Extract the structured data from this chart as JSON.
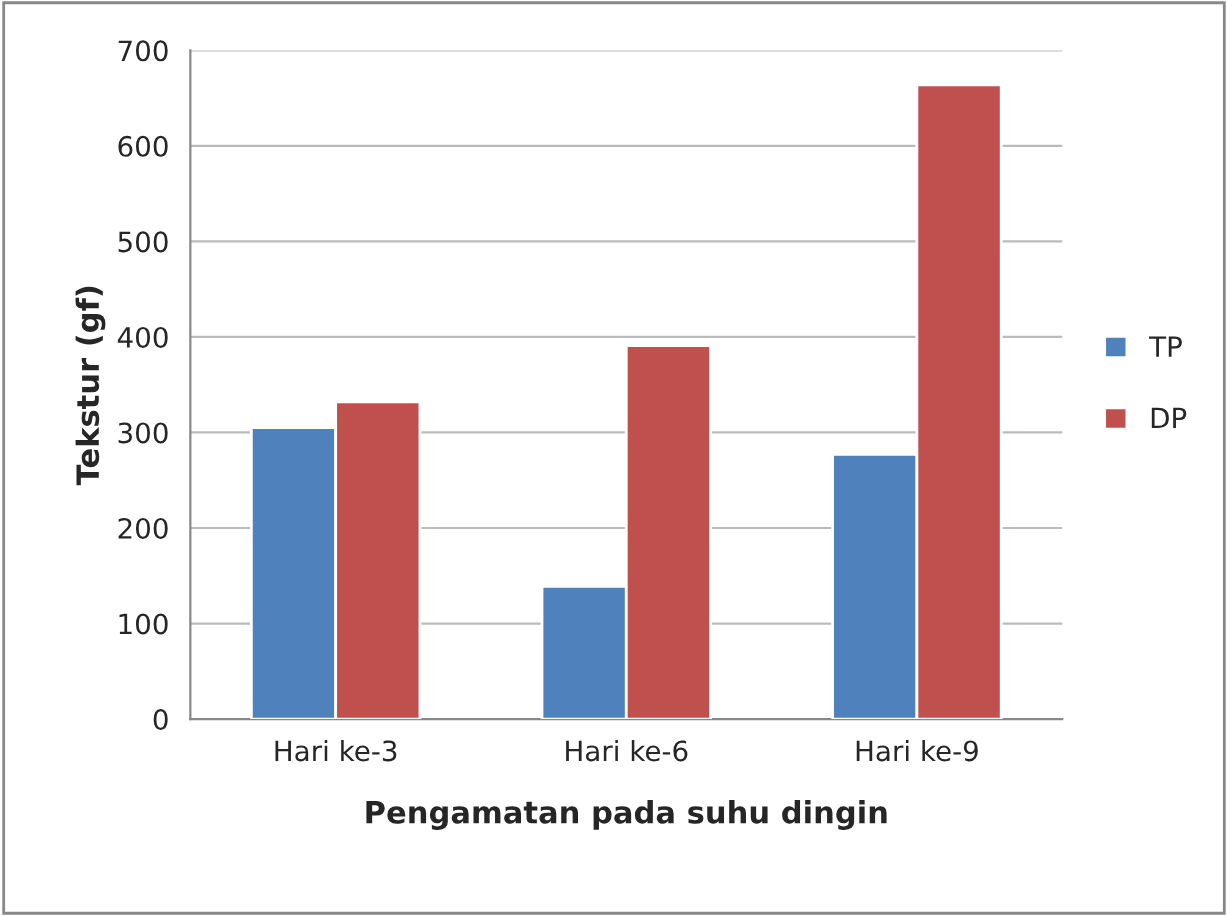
{
  "chart_data": {
    "type": "bar",
    "xlabel": "Pengamatan pada suhu dingin",
    "ylabel": "Tekstur (gf)",
    "categories": [
      "Hari ke-3",
      "Hari ke-6",
      "Hari ke-9"
    ],
    "series": [
      {
        "name": "TP",
        "color": "#4f81bd",
        "values": [
          305,
          139,
          277
        ]
      },
      {
        "name": "DP",
        "color": "#c0504d",
        "values": [
          332,
          391,
          664
        ]
      }
    ],
    "ylim": [
      0,
      700
    ],
    "yticks": [
      0,
      100,
      200,
      300,
      400,
      500,
      600,
      700
    ],
    "grid": "y",
    "legend": "right"
  }
}
